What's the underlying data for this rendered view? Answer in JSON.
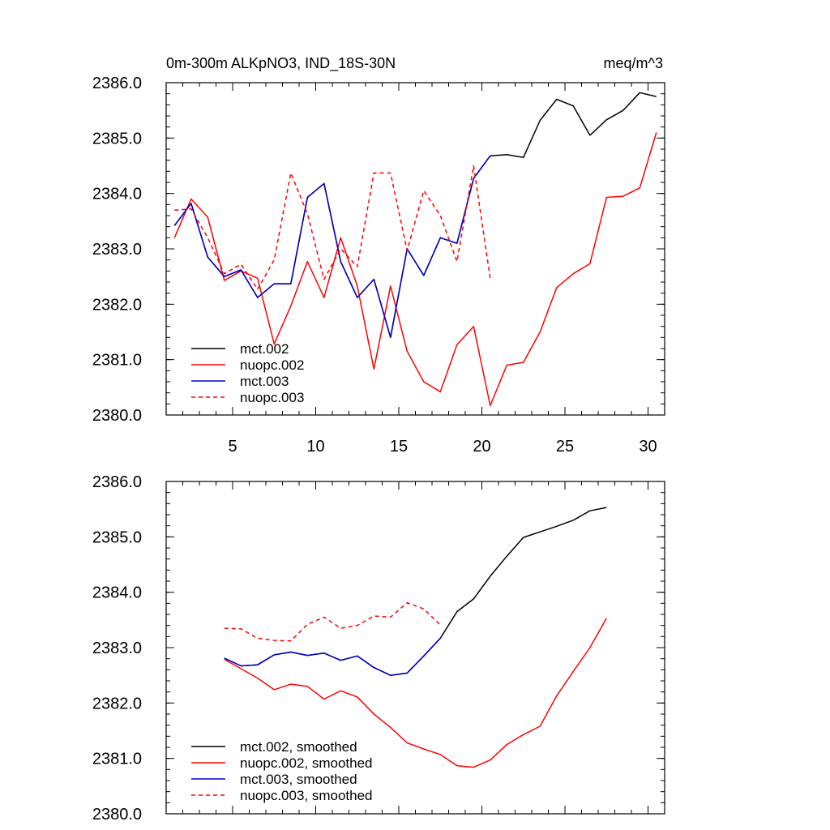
{
  "colors": {
    "black": "#000000",
    "red": "#ff0000",
    "blue": "#0000cc"
  },
  "chart_data": [
    {
      "type": "line",
      "title": "0m-300m ALKpNO3, IND_18S-30N",
      "units": "meq/m^3",
      "xlabel": "",
      "ylabel": "",
      "xlim": [
        1,
        31
      ],
      "ylim": [
        2380.0,
        2386.0
      ],
      "x_ticks": [
        5,
        10,
        15,
        20,
        25,
        30
      ],
      "x_tick_labels": [
        "5",
        "10",
        "15",
        "20",
        "25",
        "30"
      ],
      "y_ticks": [
        2380.0,
        2381.0,
        2382.0,
        2383.0,
        2384.0,
        2385.0,
        2386.0
      ],
      "y_tick_labels": [
        "2380.0",
        "2381.0",
        "2382.0",
        "2383.0",
        "2384.0",
        "2385.0",
        "2386.0"
      ],
      "legend_position": "bottom-left",
      "series": [
        {
          "name": "mct.002",
          "color": "#000000",
          "dash": "solid",
          "x": [
            1.5,
            2.5,
            3.5,
            4.5,
            5.5,
            6.5,
            7.5,
            8.5,
            9.5,
            10.5,
            11.5,
            12.5,
            13.5,
            14.5,
            15.5,
            16.5,
            17.5,
            18.5,
            19.5,
            20.5,
            21.5,
            22.5,
            23.5,
            24.5,
            25.5,
            26.5,
            27.5,
            28.5,
            29.5,
            30.5
          ],
          "y": [
            2383.42,
            2383.82,
            2382.85,
            2382.5,
            2382.62,
            2382.12,
            2382.37,
            2382.37,
            2383.93,
            2384.18,
            2382.77,
            2382.12,
            2382.45,
            2381.4,
            2383.0,
            2382.52,
            2383.2,
            2383.1,
            2384.27,
            2384.68,
            2384.7,
            2384.65,
            2385.32,
            2385.7,
            2385.58,
            2385.05,
            2385.33,
            2385.5,
            2385.82,
            2385.75
          ]
        },
        {
          "name": "nuopc.002",
          "color": "#ff0000",
          "dash": "solid",
          "x": [
            1.5,
            2.5,
            3.5,
            4.5,
            5.5,
            6.5,
            7.5,
            8.5,
            9.5,
            10.5,
            11.5,
            12.5,
            13.5,
            14.5,
            15.5,
            16.5,
            17.5,
            18.5,
            19.5,
            20.5,
            21.5,
            22.5,
            23.5,
            24.5,
            25.5,
            26.5,
            27.5,
            28.5,
            29.5,
            30.5
          ],
          "y": [
            2383.2,
            2383.9,
            2383.57,
            2382.43,
            2382.6,
            2382.47,
            2381.28,
            2381.97,
            2382.77,
            2382.12,
            2383.2,
            2382.33,
            2380.83,
            2382.33,
            2381.15,
            2380.6,
            2380.42,
            2381.27,
            2381.6,
            2380.17,
            2380.9,
            2380.95,
            2381.5,
            2382.3,
            2382.55,
            2382.73,
            2383.93,
            2383.95,
            2384.1,
            2385.1
          ]
        },
        {
          "name": "mct.003",
          "color": "#0000cc",
          "dash": "solid",
          "x": [
            1.5,
            2.5,
            3.5,
            4.5,
            5.5,
            6.5,
            7.5,
            8.5,
            9.5,
            10.5,
            11.5,
            12.5,
            13.5,
            14.5,
            15.5,
            16.5,
            17.5,
            18.5,
            19.5,
            20.5
          ],
          "y": [
            2383.42,
            2383.82,
            2382.85,
            2382.5,
            2382.62,
            2382.12,
            2382.37,
            2382.37,
            2383.93,
            2384.18,
            2382.77,
            2382.12,
            2382.45,
            2381.4,
            2383.0,
            2382.52,
            2383.2,
            2383.1,
            2384.27,
            2384.68
          ]
        },
        {
          "name": "nuopc.003",
          "color": "#ff0000",
          "dash": "dashed",
          "x": [
            1.5,
            2.5,
            3.5,
            4.5,
            5.5,
            6.5,
            7.5,
            8.5,
            9.5,
            10.5,
            11.5,
            12.5,
            13.5,
            14.5,
            15.5,
            16.5,
            17.5,
            18.5,
            19.5,
            20.5
          ],
          "y": [
            2383.7,
            2383.72,
            2383.2,
            2382.55,
            2382.72,
            2382.27,
            2382.8,
            2384.37,
            2383.63,
            2382.45,
            2383.0,
            2382.68,
            2384.37,
            2384.37,
            2382.97,
            2384.05,
            2383.6,
            2382.77,
            2384.5,
            2382.47
          ]
        }
      ]
    },
    {
      "type": "line",
      "title": "",
      "xlabel": "",
      "ylabel": "",
      "xlim": [
        1,
        31
      ],
      "ylim": [
        2380.0,
        2386.0
      ],
      "x_ticks": [
        5,
        10,
        15,
        20,
        25,
        30
      ],
      "x_tick_labels": [],
      "y_ticks": [
        2380.0,
        2381.0,
        2382.0,
        2383.0,
        2384.0,
        2385.0,
        2386.0
      ],
      "y_tick_labels": [
        "2380.0",
        "2381.0",
        "2382.0",
        "2383.0",
        "2384.0",
        "2385.0",
        "2386.0"
      ],
      "legend_position": "bottom-left",
      "series": [
        {
          "name": "mct.002, smoothed",
          "color": "#000000",
          "dash": "solid",
          "x": [
            4.5,
            5.5,
            6.5,
            7.5,
            8.5,
            9.5,
            10.5,
            11.5,
            12.5,
            13.5,
            14.5,
            15.5,
            16.5,
            17.5,
            18.5,
            19.5,
            20.5,
            21.5,
            22.5,
            23.5,
            24.5,
            25.5,
            26.5,
            27.5
          ],
          "y": [
            2382.81,
            2382.67,
            2382.69,
            2382.87,
            2382.92,
            2382.86,
            2382.9,
            2382.77,
            2382.85,
            2382.64,
            2382.5,
            2382.54,
            2382.85,
            2383.17,
            2383.65,
            2383.88,
            2384.29,
            2384.65,
            2384.99,
            2385.09,
            2385.19,
            2385.3,
            2385.47,
            2385.53
          ]
        },
        {
          "name": "nuopc.002, smoothed",
          "color": "#ff0000",
          "dash": "solid",
          "x": [
            4.5,
            5.5,
            6.5,
            7.5,
            8.5,
            9.5,
            10.5,
            11.5,
            12.5,
            13.5,
            14.5,
            15.5,
            16.5,
            17.5,
            18.5,
            19.5,
            20.5,
            21.5,
            22.5,
            23.5,
            24.5,
            25.5,
            26.5,
            27.5
          ],
          "y": [
            2382.79,
            2382.62,
            2382.45,
            2382.24,
            2382.34,
            2382.3,
            2382.07,
            2382.22,
            2382.11,
            2381.8,
            2381.56,
            2381.28,
            2381.17,
            2381.07,
            2380.87,
            2380.84,
            2380.97,
            2381.25,
            2381.43,
            2381.58,
            2382.13,
            2382.57,
            2383.0,
            2383.53
          ]
        },
        {
          "name": "mct.003, smoothed",
          "color": "#0000cc",
          "dash": "solid",
          "x": [
            4.5,
            5.5,
            6.5,
            7.5,
            8.5,
            9.5,
            10.5,
            11.5,
            12.5,
            13.5,
            14.5,
            15.5,
            16.5,
            17.5
          ],
          "y": [
            2382.81,
            2382.67,
            2382.69,
            2382.87,
            2382.92,
            2382.86,
            2382.9,
            2382.77,
            2382.85,
            2382.64,
            2382.5,
            2382.54,
            2382.85,
            2383.17
          ]
        },
        {
          "name": "nuopc.003, smoothed",
          "color": "#ff0000",
          "dash": "dashed",
          "x": [
            4.5,
            5.5,
            6.5,
            7.5,
            8.5,
            9.5,
            10.5,
            11.5,
            12.5,
            13.5,
            14.5,
            15.5,
            16.5,
            17.5
          ],
          "y": [
            2383.35,
            2383.34,
            2383.17,
            2383.13,
            2383.12,
            2383.42,
            2383.55,
            2383.35,
            2383.4,
            2383.57,
            2383.55,
            2383.81,
            2383.7,
            2383.41
          ]
        }
      ]
    }
  ]
}
